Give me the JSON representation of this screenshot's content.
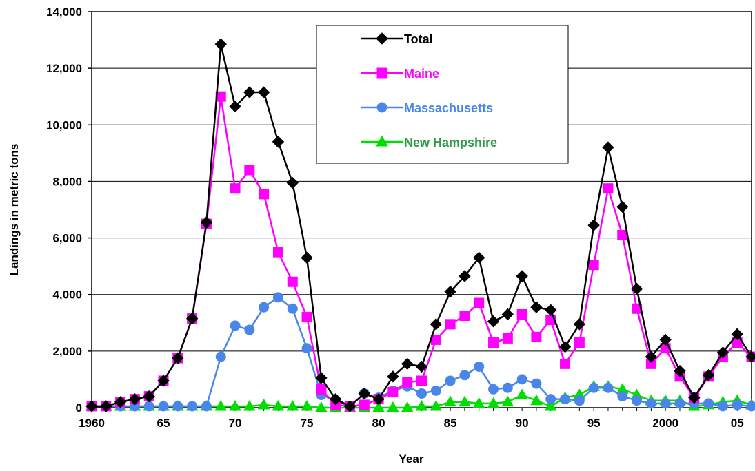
{
  "chart_data": {
    "type": "line",
    "title": "",
    "xlabel": "Year",
    "ylabel": "Landings in metric tons",
    "xlim": [
      1960,
      2006
    ],
    "ylim": [
      0,
      14000
    ],
    "y_ticks": [
      0,
      2000,
      4000,
      6000,
      8000,
      10000,
      12000,
      14000
    ],
    "y_tick_labels": [
      "0",
      "2,000",
      "4,000",
      "6,000",
      "8,000",
      "10,000",
      "12,000",
      "14,000"
    ],
    "x_ticks": [
      1960,
      1965,
      1970,
      1975,
      1980,
      1985,
      1990,
      1995,
      2000,
      2005
    ],
    "x_tick_labels": [
      "1960",
      "65",
      "70",
      "75",
      "80",
      "85",
      "90",
      "95",
      "2000",
      "05"
    ],
    "grid": "horizontal",
    "legend_position": "top-center",
    "x": [
      1960,
      1961,
      1962,
      1963,
      1964,
      1965,
      1966,
      1967,
      1968,
      1969,
      1970,
      1971,
      1972,
      1973,
      1974,
      1975,
      1976,
      1977,
      1978,
      1979,
      1980,
      1981,
      1982,
      1983,
      1984,
      1985,
      1986,
      1987,
      1988,
      1989,
      1990,
      1991,
      1992,
      1993,
      1994,
      1995,
      1996,
      1997,
      1998,
      1999,
      2000,
      2001,
      2002,
      2003,
      2004,
      2005,
      2006
    ],
    "series": [
      {
        "name": "Total",
        "color": "#000000",
        "marker": "diamond",
        "values": [
          50,
          50,
          200,
          300,
          400,
          950,
          1750,
          3150,
          6550,
          12850,
          10650,
          11150,
          11150,
          9400,
          7950,
          5300,
          1050,
          300,
          50,
          500,
          300,
          1100,
          1550,
          1450,
          2950,
          4100,
          4650,
          5300,
          3050,
          3300,
          4650,
          3550,
          3450,
          2150,
          2950,
          6450,
          9200,
          7100,
          4200,
          1800,
          2400,
          1300,
          350,
          1150,
          1950,
          2600,
          1800
        ]
      },
      {
        "name": "Maine",
        "color": "#ff00ff",
        "marker": "square",
        "values": [
          50,
          50,
          200,
          300,
          400,
          950,
          1750,
          3150,
          6500,
          11000,
          7750,
          8400,
          7550,
          5500,
          4450,
          3200,
          650,
          100,
          50,
          100,
          300,
          550,
          900,
          950,
          2400,
          2950,
          3250,
          3700,
          2300,
          2450,
          3300,
          2500,
          3100,
          1550,
          2300,
          5050,
          7750,
          6100,
          3500,
          1550,
          2100,
          1100,
          350,
          1100,
          1800,
          2300,
          1800
        ]
      },
      {
        "name": "Massachusetts",
        "color": "#4a86e8",
        "marker": "circle",
        "values": [
          50,
          50,
          50,
          50,
          50,
          50,
          50,
          50,
          50,
          1800,
          2900,
          2750,
          3550,
          3900,
          3500,
          2100,
          450,
          250,
          50,
          500,
          350,
          600,
          750,
          500,
          600,
          950,
          1150,
          1450,
          650,
          700,
          1000,
          850,
          300,
          300,
          250,
          700,
          700,
          400,
          250,
          150,
          150,
          150,
          150,
          150,
          50,
          100,
          50
        ]
      },
      {
        "name": "New Hampshire",
        "color": "#00dd00",
        "marker": "triangle",
        "values": [
          50,
          50,
          50,
          50,
          50,
          50,
          50,
          50,
          50,
          50,
          50,
          50,
          100,
          50,
          50,
          50,
          0,
          0,
          0,
          0,
          0,
          0,
          0,
          50,
          50,
          200,
          200,
          150,
          150,
          200,
          450,
          250,
          50,
          350,
          450,
          750,
          750,
          650,
          450,
          250,
          250,
          250,
          50,
          100,
          200,
          250,
          100
        ]
      }
    ]
  }
}
